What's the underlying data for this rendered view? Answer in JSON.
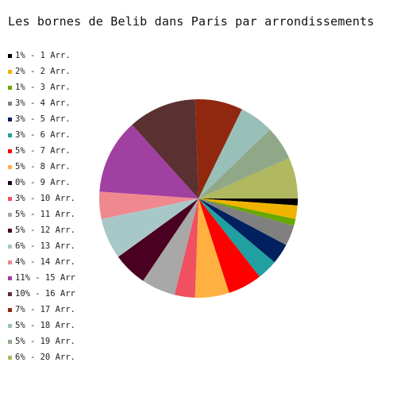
{
  "chart_data": {
    "type": "pie",
    "title": "Les bornes de Belib dans Paris par arrondissements",
    "slices": [
      {
        "label": "1% - 1 Arr.",
        "value": 1,
        "color": "#000000"
      },
      {
        "label": "2% - 2 Arr.",
        "value": 2,
        "color": "#f0b400"
      },
      {
        "label": "1% - 3 Arr.",
        "value": 1,
        "color": "#68a800"
      },
      {
        "label": "3% - 4 Arr.",
        "value": 3,
        "color": "#808080"
      },
      {
        "label": "3% - 5 Arr.",
        "value": 3,
        "color": "#002060"
      },
      {
        "label": "3% - 6 Arr.",
        "value": 3,
        "color": "#20a0a0"
      },
      {
        "label": "5% - 7 Arr.",
        "value": 5,
        "color": "#ff0000"
      },
      {
        "label": "5% - 8 Arr.",
        "value": 5,
        "color": "#ffb040"
      },
      {
        "label": "0% - 9 Arr.",
        "value": 0,
        "color": "#200020"
      },
      {
        "label": "3% - 10 Arr.",
        "value": 3,
        "color": "#f05060"
      },
      {
        "label": "5% - 11 Arr.",
        "value": 5,
        "color": "#a8a8a8"
      },
      {
        "label": "5% - 12 Arr.",
        "value": 5,
        "color": "#4a0020"
      },
      {
        "label": "6% - 13 Arr.",
        "value": 6,
        "color": "#a8c8c8"
      },
      {
        "label": "4% - 14 Arr.",
        "value": 4,
        "color": "#f08890"
      },
      {
        "label": "11% - 15 Arr",
        "value": 11,
        "color": "#a040a0"
      },
      {
        "label": "10% - 16 Arr",
        "value": 10,
        "color": "#5a3030"
      },
      {
        "label": "7% - 17 Arr.",
        "value": 7,
        "color": "#902810"
      },
      {
        "label": "5% - 18 Arr.",
        "value": 5,
        "color": "#98c0b8"
      },
      {
        "label": "5% - 19 Arr.",
        "value": 5,
        "color": "#90a888"
      },
      {
        "label": "6% - 20 Arr.",
        "value": 6,
        "color": "#b0b860"
      }
    ],
    "legend_position": "left"
  }
}
